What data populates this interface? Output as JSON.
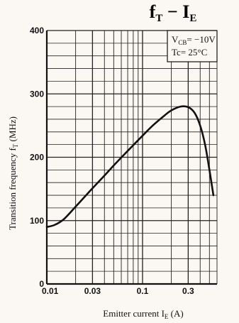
{
  "chart_data": {
    "type": "line",
    "title": {
      "main": "f",
      "main_sub": "T",
      "dash": "−",
      "second": "I",
      "second_sub": "E"
    },
    "xlabel": {
      "text": "Emitter current I",
      "sub": "E",
      "unit": " (A)"
    },
    "ylabel": {
      "text": "Transition frequency f",
      "sub": "T",
      "unit": " (MHz)"
    },
    "x_scale": "log",
    "xlim": [
      0.01,
      0.6
    ],
    "ylim": [
      0,
      400
    ],
    "x_ticks": [
      0.01,
      0.03,
      0.1,
      0.3
    ],
    "x_tick_labels": [
      "0.01",
      "0.03",
      "0.1",
      "0.3"
    ],
    "y_ticks": [
      0,
      100,
      200,
      300,
      400
    ],
    "y_tick_labels": [
      "0",
      "100",
      "200",
      "300",
      "400"
    ],
    "grid": true,
    "conditions": [
      {
        "name": "V",
        "sub": "CB",
        "value": "= −10V"
      },
      {
        "name": "Tc",
        "sub": "",
        "value": "= 25°C"
      }
    ],
    "series": [
      {
        "x": [
          0.01,
          0.012,
          0.015,
          0.02,
          0.025,
          0.03,
          0.04,
          0.05,
          0.07,
          0.1,
          0.13,
          0.17,
          0.2,
          0.25,
          0.3,
          0.35,
          0.4,
          0.45,
          0.5,
          0.55
        ],
        "y": [
          90,
          93,
          102,
          122,
          138,
          151,
          171,
          187,
          210,
          234,
          251,
          266,
          274,
          280,
          279,
          270,
          250,
          220,
          180,
          140
        ]
      }
    ]
  }
}
